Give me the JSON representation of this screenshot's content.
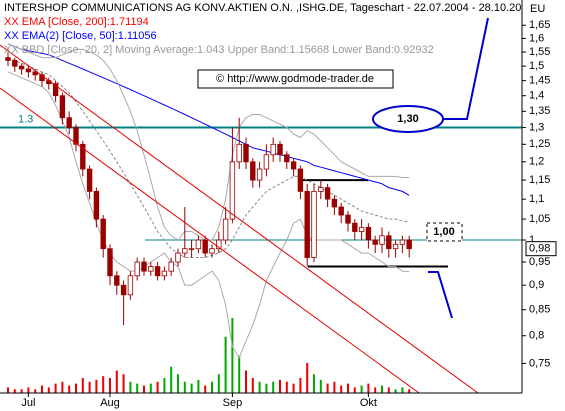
{
  "chart_data": {
    "type": "candlestick",
    "title": "INTERSHOP COMMUNICATIONS AG KONV.AKTIEN O.N. ,ISHG.DE, Tageschart - 22.07.2004 - 28.10.20",
    "legend": [
      {
        "text": "XX EMA [Close, 200]:1.71194",
        "color": "#ff0000"
      },
      {
        "text": "XX EMA(2) [Close, 50]:1.11056",
        "color": "#0000ff"
      },
      {
        "text": "XX BBD [Close, 20, 2] Moving Average:1.043 Upper Band:1.15668 Lower Band:0.92932",
        "color": "#999999"
      }
    ],
    "watermark": "© http://www.godmode-trader.de",
    "currency_label": "EU",
    "annotations": [
      "1,30",
      "1,00"
    ],
    "log_scale": true,
    "ylim": [
      0.7,
      1.75
    ],
    "yticks": [
      {
        "value": 1.65,
        "label": "1,65"
      },
      {
        "value": 1.6,
        "label": "1,6"
      },
      {
        "value": 1.55,
        "label": "1,55"
      },
      {
        "value": 1.5,
        "label": "1,5"
      },
      {
        "value": 1.45,
        "label": "1,45"
      },
      {
        "value": 1.4,
        "label": "1,4"
      },
      {
        "value": 1.35,
        "label": "1,35"
      },
      {
        "value": 1.3,
        "label": "1,3"
      },
      {
        "value": 1.25,
        "label": "1,25"
      },
      {
        "value": 1.2,
        "label": "1,2"
      },
      {
        "value": 1.15,
        "label": "1,15"
      },
      {
        "value": 1.1,
        "label": "1,1"
      },
      {
        "value": 1.05,
        "label": "1,05"
      },
      1,
      {
        "value": 0.95,
        "label": "0,95"
      },
      {
        "value": 0.9,
        "label": "0,9"
      },
      {
        "value": 0.85,
        "label": "0,85"
      },
      {
        "value": 0.8,
        "label": "0,8"
      },
      {
        "value": 0.75,
        "label": "0,75"
      }
    ],
    "last_price": {
      "value": 0.98,
      "label": "0,98"
    },
    "reference_lines": [
      {
        "value": 1.3,
        "label": "1.3",
        "color": "#008080"
      },
      {
        "value": 1,
        "color": "#008080"
      }
    ],
    "support_lines": [
      {
        "value": 1.15,
        "color": "#000000"
      },
      {
        "value": 0.94,
        "color": "#000000"
      }
    ],
    "up_color": "#ffffff",
    "down_color": "#990000",
    "volume_up_color": "#00aa00",
    "volume_down_color": "#ee0000",
    "categories": [
      null,
      null,
      null,
      "Jul",
      null,
      null,
      null,
      null,
      null,
      null,
      null,
      null,
      null,
      null,
      null,
      "Aug",
      null,
      null,
      null,
      null,
      null,
      null,
      null,
      null,
      null,
      null,
      null,
      null,
      null,
      null,
      null,
      null,
      null,
      "Sep",
      null,
      null,
      null,
      null,
      null,
      null,
      null,
      null,
      null,
      null,
      null,
      null,
      null,
      null,
      null,
      null,
      null,
      null,
      null,
      "Okt",
      null,
      null,
      null,
      null,
      null,
      null
    ],
    "open": [
      1.53,
      1.52,
      1.5,
      1.49,
      1.48,
      1.47,
      1.45,
      1.44,
      1.4,
      1.33,
      1.3,
      1.25,
      1.18,
      1.12,
      1.05,
      0.98,
      0.92,
      0.9,
      0.88,
      0.92,
      0.95,
      0.93,
      0.94,
      0.92,
      0.93,
      0.95,
      0.97,
      0.98,
      0.98,
      1.0,
      0.97,
      0.98,
      1.0,
      1.05,
      1.2,
      1.25,
      1.2,
      1.15,
      1.18,
      1.22,
      1.25,
      1.22,
      1.2,
      1.18,
      1.12,
      0.96,
      1.12,
      1.13,
      1.1,
      1.08,
      1.06,
      1.04,
      1.02,
      1.03,
      1.0,
      0.99,
      1.01,
      0.98,
      0.99,
      1.0
    ],
    "high": [
      1.55,
      1.53,
      1.51,
      1.5,
      1.49,
      1.48,
      1.46,
      1.45,
      1.41,
      1.35,
      1.31,
      1.26,
      1.19,
      1.13,
      1.06,
      0.99,
      0.93,
      0.91,
      0.93,
      0.96,
      0.96,
      0.95,
      0.95,
      0.94,
      0.96,
      0.98,
      1.08,
      1.0,
      1.01,
      1.01,
      0.99,
      1.02,
      1.08,
      1.3,
      1.33,
      1.27,
      1.21,
      1.2,
      1.25,
      1.27,
      1.26,
      1.23,
      1.21,
      1.19,
      1.14,
      1.14,
      1.15,
      1.14,
      1.11,
      1.09,
      1.07,
      1.05,
      1.05,
      1.04,
      1.01,
      1.03,
      1.02,
      1.0,
      1.01,
      1.01
    ],
    "low": [
      1.5,
      1.48,
      1.47,
      1.46,
      1.45,
      1.43,
      1.42,
      1.38,
      1.31,
      1.28,
      1.23,
      1.16,
      1.1,
      1.03,
      0.96,
      0.9,
      0.88,
      0.82,
      0.87,
      0.91,
      0.92,
      0.92,
      0.91,
      0.91,
      0.92,
      0.94,
      0.96,
      0.96,
      0.97,
      0.96,
      0.96,
      0.97,
      0.99,
      1.04,
      1.18,
      1.18,
      1.13,
      1.13,
      1.16,
      1.2,
      1.2,
      1.18,
      1.16,
      1.1,
      0.94,
      0.95,
      1.1,
      1.08,
      1.06,
      1.04,
      1.02,
      1.0,
      1.0,
      0.98,
      0.97,
      0.97,
      0.96,
      0.96,
      0.97,
      0.96
    ],
    "close": [
      1.52,
      1.5,
      1.49,
      1.48,
      1.47,
      1.45,
      1.44,
      1.4,
      1.33,
      1.3,
      1.25,
      1.18,
      1.12,
      1.05,
      0.98,
      0.92,
      0.9,
      0.88,
      0.92,
      0.95,
      0.93,
      0.94,
      0.92,
      0.93,
      0.95,
      0.97,
      0.98,
      0.98,
      1.0,
      0.97,
      0.98,
      1.0,
      1.05,
      1.2,
      1.25,
      1.2,
      1.15,
      1.18,
      1.22,
      1.25,
      1.22,
      1.2,
      1.18,
      1.12,
      0.96,
      1.12,
      1.13,
      1.1,
      1.08,
      1.06,
      1.04,
      1.02,
      1.03,
      1.0,
      0.99,
      1.01,
      0.98,
      0.99,
      1.0,
      0.98
    ],
    "volume": [
      3,
      2,
      2,
      3,
      2,
      4,
      3,
      5,
      6,
      4,
      5,
      8,
      6,
      7,
      9,
      8,
      12,
      10,
      6,
      5,
      4,
      5,
      6,
      8,
      14,
      10,
      6,
      5,
      7,
      4,
      6,
      10,
      30,
      40,
      20,
      12,
      8,
      6,
      5,
      6,
      7,
      6,
      5,
      8,
      16,
      10,
      7,
      5,
      6,
      4,
      5,
      3,
      4,
      5,
      3,
      4,
      3,
      2,
      3,
      2
    ],
    "series": [
      {
        "color": "#0000ff",
        "values": [
          1.58,
          1.57,
          1.56,
          1.555,
          1.55,
          1.545,
          1.54,
          1.53,
          1.52,
          1.51,
          1.5,
          1.49,
          1.48,
          1.47,
          1.46,
          1.45,
          1.44,
          1.43,
          1.42,
          1.41,
          1.4,
          1.39,
          1.38,
          1.37,
          1.36,
          1.35,
          1.34,
          1.33,
          1.32,
          1.31,
          1.3,
          1.29,
          1.28,
          1.27,
          1.26,
          1.25,
          1.24,
          1.235,
          1.23,
          1.225,
          1.22,
          1.215,
          1.21,
          1.205,
          1.2,
          1.19,
          1.185,
          1.18,
          1.175,
          1.17,
          1.165,
          1.16,
          1.155,
          1.15,
          1.145,
          1.14,
          1.13,
          1.125,
          1.12,
          1.11
        ]
      },
      {
        "color": "#888888",
        "dash": true,
        "values": [
          1.53,
          1.52,
          1.51,
          1.5,
          1.49,
          1.48,
          1.47,
          1.45,
          1.43,
          1.41,
          1.38,
          1.35,
          1.32,
          1.29,
          1.26,
          1.23,
          1.2,
          1.17,
          1.14,
          1.11,
          1.08,
          1.05,
          1.02,
          1.0,
          0.98,
          0.97,
          0.96,
          0.96,
          0.96,
          0.96,
          0.965,
          0.97,
          0.98,
          1.0,
          1.03,
          1.06,
          1.08,
          1.1,
          1.12,
          1.13,
          1.14,
          1.15,
          1.16,
          1.16,
          1.15,
          1.14,
          1.13,
          1.12,
          1.11,
          1.1,
          1.09,
          1.08,
          1.07,
          1.065,
          1.06,
          1.055,
          1.05,
          1.05,
          1.045,
          1.043
        ]
      },
      {
        "color": "#aaaaaa",
        "values": [
          1.58,
          1.57,
          1.56,
          1.55,
          1.54,
          1.53,
          1.53,
          1.53,
          1.54,
          1.55,
          1.56,
          1.56,
          1.55,
          1.54,
          1.52,
          1.49,
          1.45,
          1.4,
          1.35,
          1.29,
          1.22,
          1.15,
          1.08,
          1.03,
          1.01,
          1.0,
          1.02,
          1.02,
          1.01,
          1.0,
          1.0,
          1.03,
          1.1,
          1.22,
          1.3,
          1.33,
          1.34,
          1.34,
          1.33,
          1.32,
          1.31,
          1.3,
          1.28,
          1.27,
          1.29,
          1.28,
          1.26,
          1.24,
          1.22,
          1.2,
          1.19,
          1.18,
          1.17,
          1.16,
          1.16,
          1.16,
          1.16,
          1.16,
          1.157,
          1.157
        ]
      },
      {
        "color": "#aaaaaa",
        "values": [
          1.48,
          1.47,
          1.46,
          1.45,
          1.44,
          1.43,
          1.41,
          1.37,
          1.32,
          1.27,
          1.2,
          1.14,
          1.09,
          1.04,
          1.0,
          0.97,
          0.95,
          0.94,
          0.93,
          0.93,
          0.94,
          0.95,
          0.96,
          0.97,
          0.95,
          0.94,
          0.9,
          0.9,
          0.91,
          0.92,
          0.93,
          0.91,
          0.86,
          0.78,
          0.76,
          0.79,
          0.82,
          0.86,
          0.91,
          0.94,
          0.97,
          1.0,
          1.04,
          1.05,
          1.01,
          1.0,
          1.0,
          1.0,
          1.0,
          1.0,
          0.99,
          0.98,
          0.97,
          0.97,
          0.96,
          0.95,
          0.94,
          0.94,
          0.93,
          0.929
        ]
      }
    ]
  }
}
